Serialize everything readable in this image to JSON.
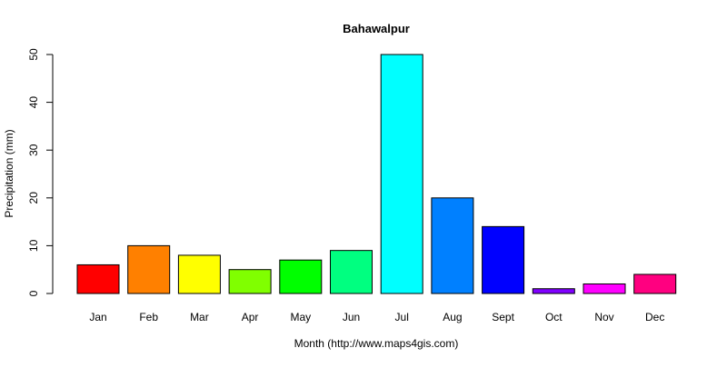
{
  "chart_data": {
    "type": "bar",
    "title": "Bahawalpur",
    "xlabel": "Month (http://www.maps4gis.com)",
    "ylabel": "Precipitation (mm)",
    "ylim": [
      0,
      50
    ],
    "yticks": [
      "0",
      "10",
      "20",
      "30",
      "40",
      "50"
    ],
    "categories": [
      "Jan",
      "Feb",
      "Mar",
      "Apr",
      "May",
      "Jun",
      "Jul",
      "Aug",
      "Sept",
      "Oct",
      "Nov",
      "Dec"
    ],
    "values": [
      6,
      10,
      8,
      5,
      7,
      9,
      50,
      20,
      14,
      1,
      2,
      4
    ],
    "colors": [
      "#FF0000",
      "#FF8000",
      "#FFFF00",
      "#80FF00",
      "#00FF00",
      "#00FF80",
      "#00FFFF",
      "#0080FF",
      "#0000FF",
      "#8000FF",
      "#FF00FF",
      "#FF0080"
    ],
    "grid": false,
    "legend": "none"
  }
}
